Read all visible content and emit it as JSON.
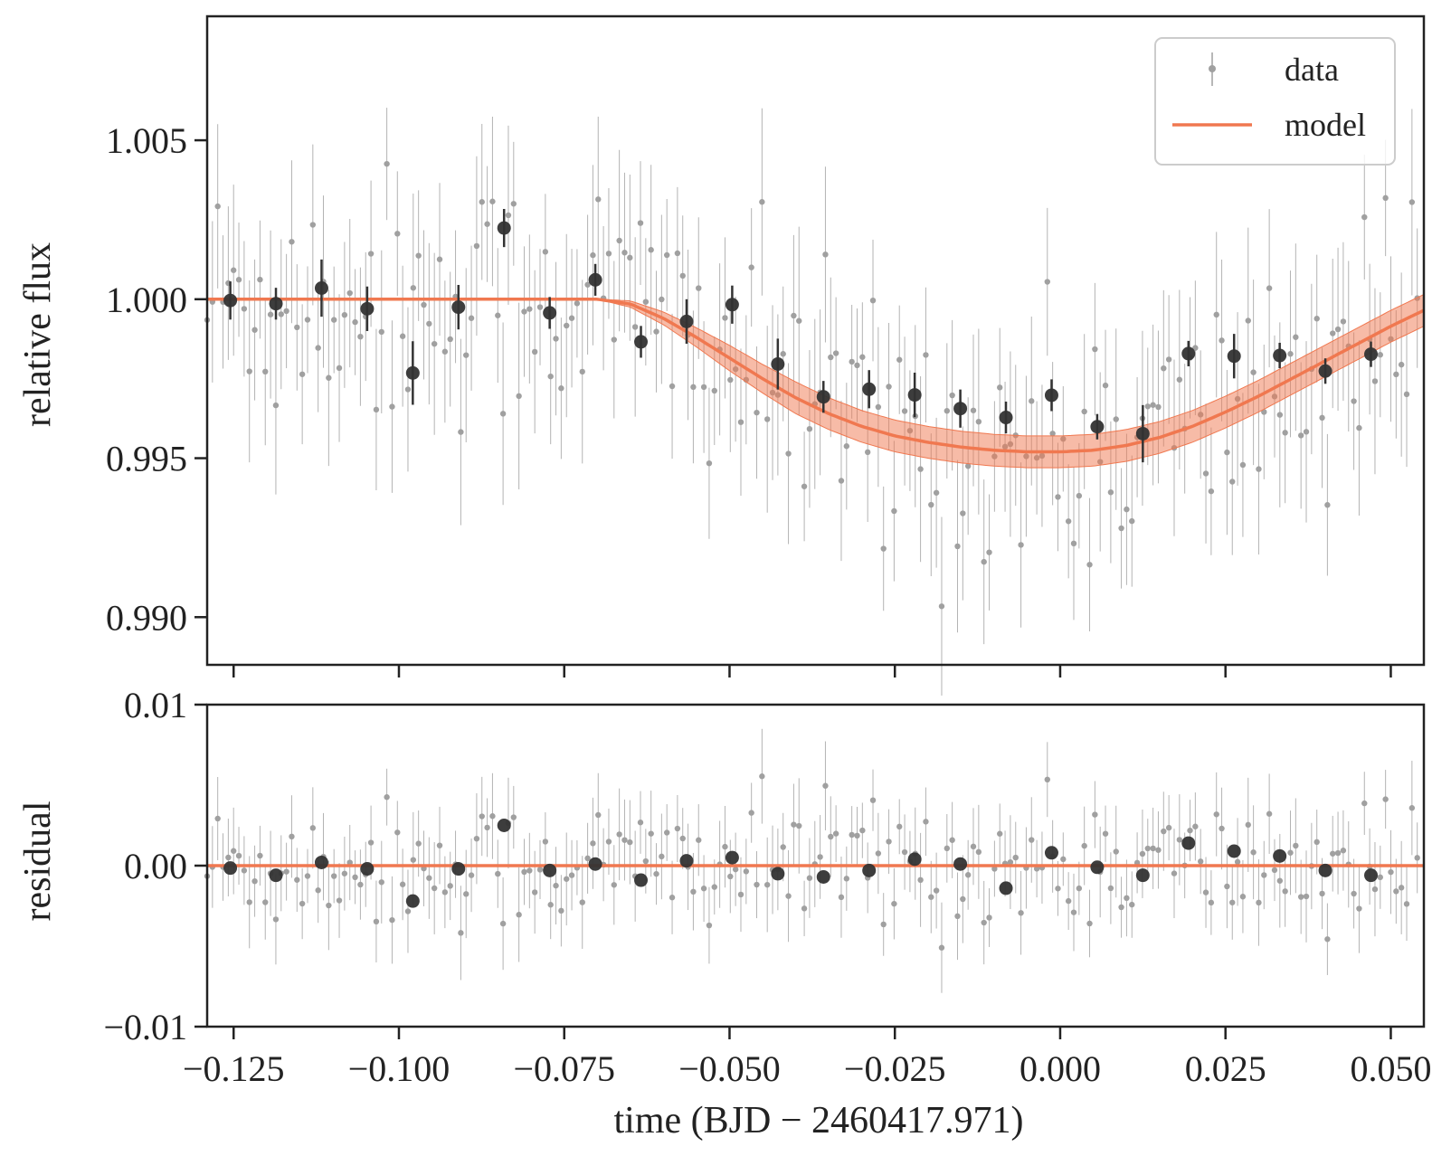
{
  "chart_data": [
    {
      "type": "scatter",
      "panel": "top",
      "ylabel": "relative flux",
      "xlabel": "",
      "xlim": [
        -0.129,
        0.055
      ],
      "ylim": [
        0.9885,
        1.0089
      ],
      "yticks": [
        0.99,
        0.995,
        1.0,
        1.005
      ],
      "ytick_labels": [
        "0.990",
        "0.995",
        "1.000",
        "1.005"
      ],
      "xticks": [
        -0.125,
        -0.1,
        -0.075,
        -0.05,
        -0.025,
        0.0,
        0.025,
        0.05
      ],
      "legend": {
        "position": "top-right",
        "entries": [
          {
            "label": "data",
            "kind": "errorbar"
          },
          {
            "label": "model",
            "kind": "line"
          }
        ]
      },
      "binned": {
        "x": [
          -0.1255,
          -0.1186,
          -0.1117,
          -0.1048,
          -0.0979,
          -0.091,
          -0.0841,
          -0.0772,
          -0.0703,
          -0.0634,
          -0.0565,
          -0.0496,
          -0.0427,
          -0.0358,
          -0.0289,
          -0.022,
          -0.0151,
          -0.0082,
          -0.0013,
          0.0056,
          0.0125,
          0.0194,
          0.0263,
          0.0332,
          0.0401,
          0.047
        ],
        "y": [
          0.99996,
          0.99986,
          1.00035,
          0.9997,
          0.99768,
          0.99975,
          1.00224,
          0.99957,
          1.00061,
          0.99866,
          0.9993,
          0.99983,
          0.99796,
          0.99693,
          0.99717,
          0.99699,
          0.99656,
          0.99628,
          0.99698,
          0.99599,
          0.99577,
          0.99829,
          0.99821,
          0.99823,
          0.99774,
          0.99827
        ],
        "err": [
          0.0006,
          0.0005,
          0.0009,
          0.0007,
          0.001,
          0.0007,
          0.0006,
          0.0005,
          0.0005,
          0.0005,
          0.0007,
          0.0006,
          0.0008,
          0.0005,
          0.0006,
          0.0007,
          0.0006,
          0.0005,
          0.0005,
          0.0004,
          0.0009,
          0.0004,
          0.0007,
          0.0004,
          0.0004,
          0.0004
        ]
      },
      "model": {
        "x": [
          -0.129,
          -0.07,
          -0.065,
          -0.06,
          -0.055,
          -0.05,
          -0.045,
          -0.04,
          -0.035,
          -0.03,
          -0.025,
          -0.02,
          -0.015,
          -0.01,
          -0.005,
          0.0,
          0.005,
          0.01,
          0.015,
          0.02,
          0.025,
          0.03,
          0.035,
          0.04,
          0.045,
          0.05,
          0.055
        ],
        "y": [
          1.0,
          1.0,
          0.99985,
          0.9994,
          0.9988,
          0.99815,
          0.9975,
          0.9969,
          0.9964,
          0.996,
          0.9957,
          0.9955,
          0.99535,
          0.99525,
          0.9952,
          0.9952,
          0.99525,
          0.9954,
          0.99565,
          0.996,
          0.99645,
          0.99695,
          0.9975,
          0.99805,
          0.9986,
          0.99915,
          0.99965
        ],
        "band_halfwidth": [
          0,
          0,
          0.0001,
          0.0002,
          0.0003,
          0.0004,
          0.00045,
          0.0005,
          0.0005,
          0.0005,
          0.0005,
          0.0005,
          0.0005,
          0.0005,
          0.0005,
          0.0005,
          0.0005,
          0.0005,
          0.0005,
          0.0005,
          0.0005,
          0.0005,
          0.0005,
          0.0005,
          0.0005,
          0.0005,
          0.0005
        ],
        "color": "#f07850"
      },
      "raw_points": {
        "n": 230,
        "x_range": [
          -0.129,
          0.054
        ],
        "scatter_sigma": 0.0021,
        "typical_err": 0.0022,
        "color": "#a0a0a0"
      }
    },
    {
      "type": "scatter",
      "panel": "bottom",
      "ylabel": "residual",
      "xlabel": "time (BJD − 2460417.971)",
      "xlim": [
        -0.129,
        0.055
      ],
      "ylim": [
        -0.01,
        0.01
      ],
      "yticks": [
        -0.01,
        0.0,
        0.01
      ],
      "ytick_labels": [
        "−0.01",
        "0.00",
        "0.01"
      ],
      "xticks": [
        -0.125,
        -0.1,
        -0.075,
        -0.05,
        -0.025,
        0.0,
        0.025,
        0.05
      ],
      "xtick_labels": [
        "−0.125",
        "−0.100",
        "−0.075",
        "−0.050",
        "−0.025",
        "0.000",
        "0.025",
        "0.050"
      ],
      "binned": {
        "x": [
          -0.1255,
          -0.1186,
          -0.1117,
          -0.1048,
          -0.0979,
          -0.091,
          -0.0841,
          -0.0772,
          -0.0703,
          -0.0634,
          -0.0565,
          -0.0496,
          -0.0427,
          -0.0358,
          -0.0289,
          -0.022,
          -0.0151,
          -0.0082,
          -0.0013,
          0.0056,
          0.0125,
          0.0194,
          0.0263,
          0.0332,
          0.0401,
          0.047
        ],
        "y": [
          -0.00015,
          -0.0006,
          0.0002,
          -0.0002,
          -0.0022,
          -0.0002,
          0.0025,
          -0.0003,
          0.0001,
          -0.0009,
          0.0003,
          0.0005,
          -0.0005,
          -0.0007,
          -0.0003,
          0.0004,
          0.0001,
          -0.0014,
          0.0008,
          -0.0001,
          -0.0006,
          0.0014,
          0.0009,
          0.0006,
          -0.0003,
          -0.0006
        ]
      },
      "zero_line": {
        "y": 0.0,
        "color": "#f07850"
      },
      "raw_points": {
        "n": 230,
        "x_range": [
          -0.129,
          0.054
        ],
        "scatter_sigma": 0.0021,
        "typical_err": 0.0022,
        "color": "#a0a0a0"
      }
    }
  ]
}
